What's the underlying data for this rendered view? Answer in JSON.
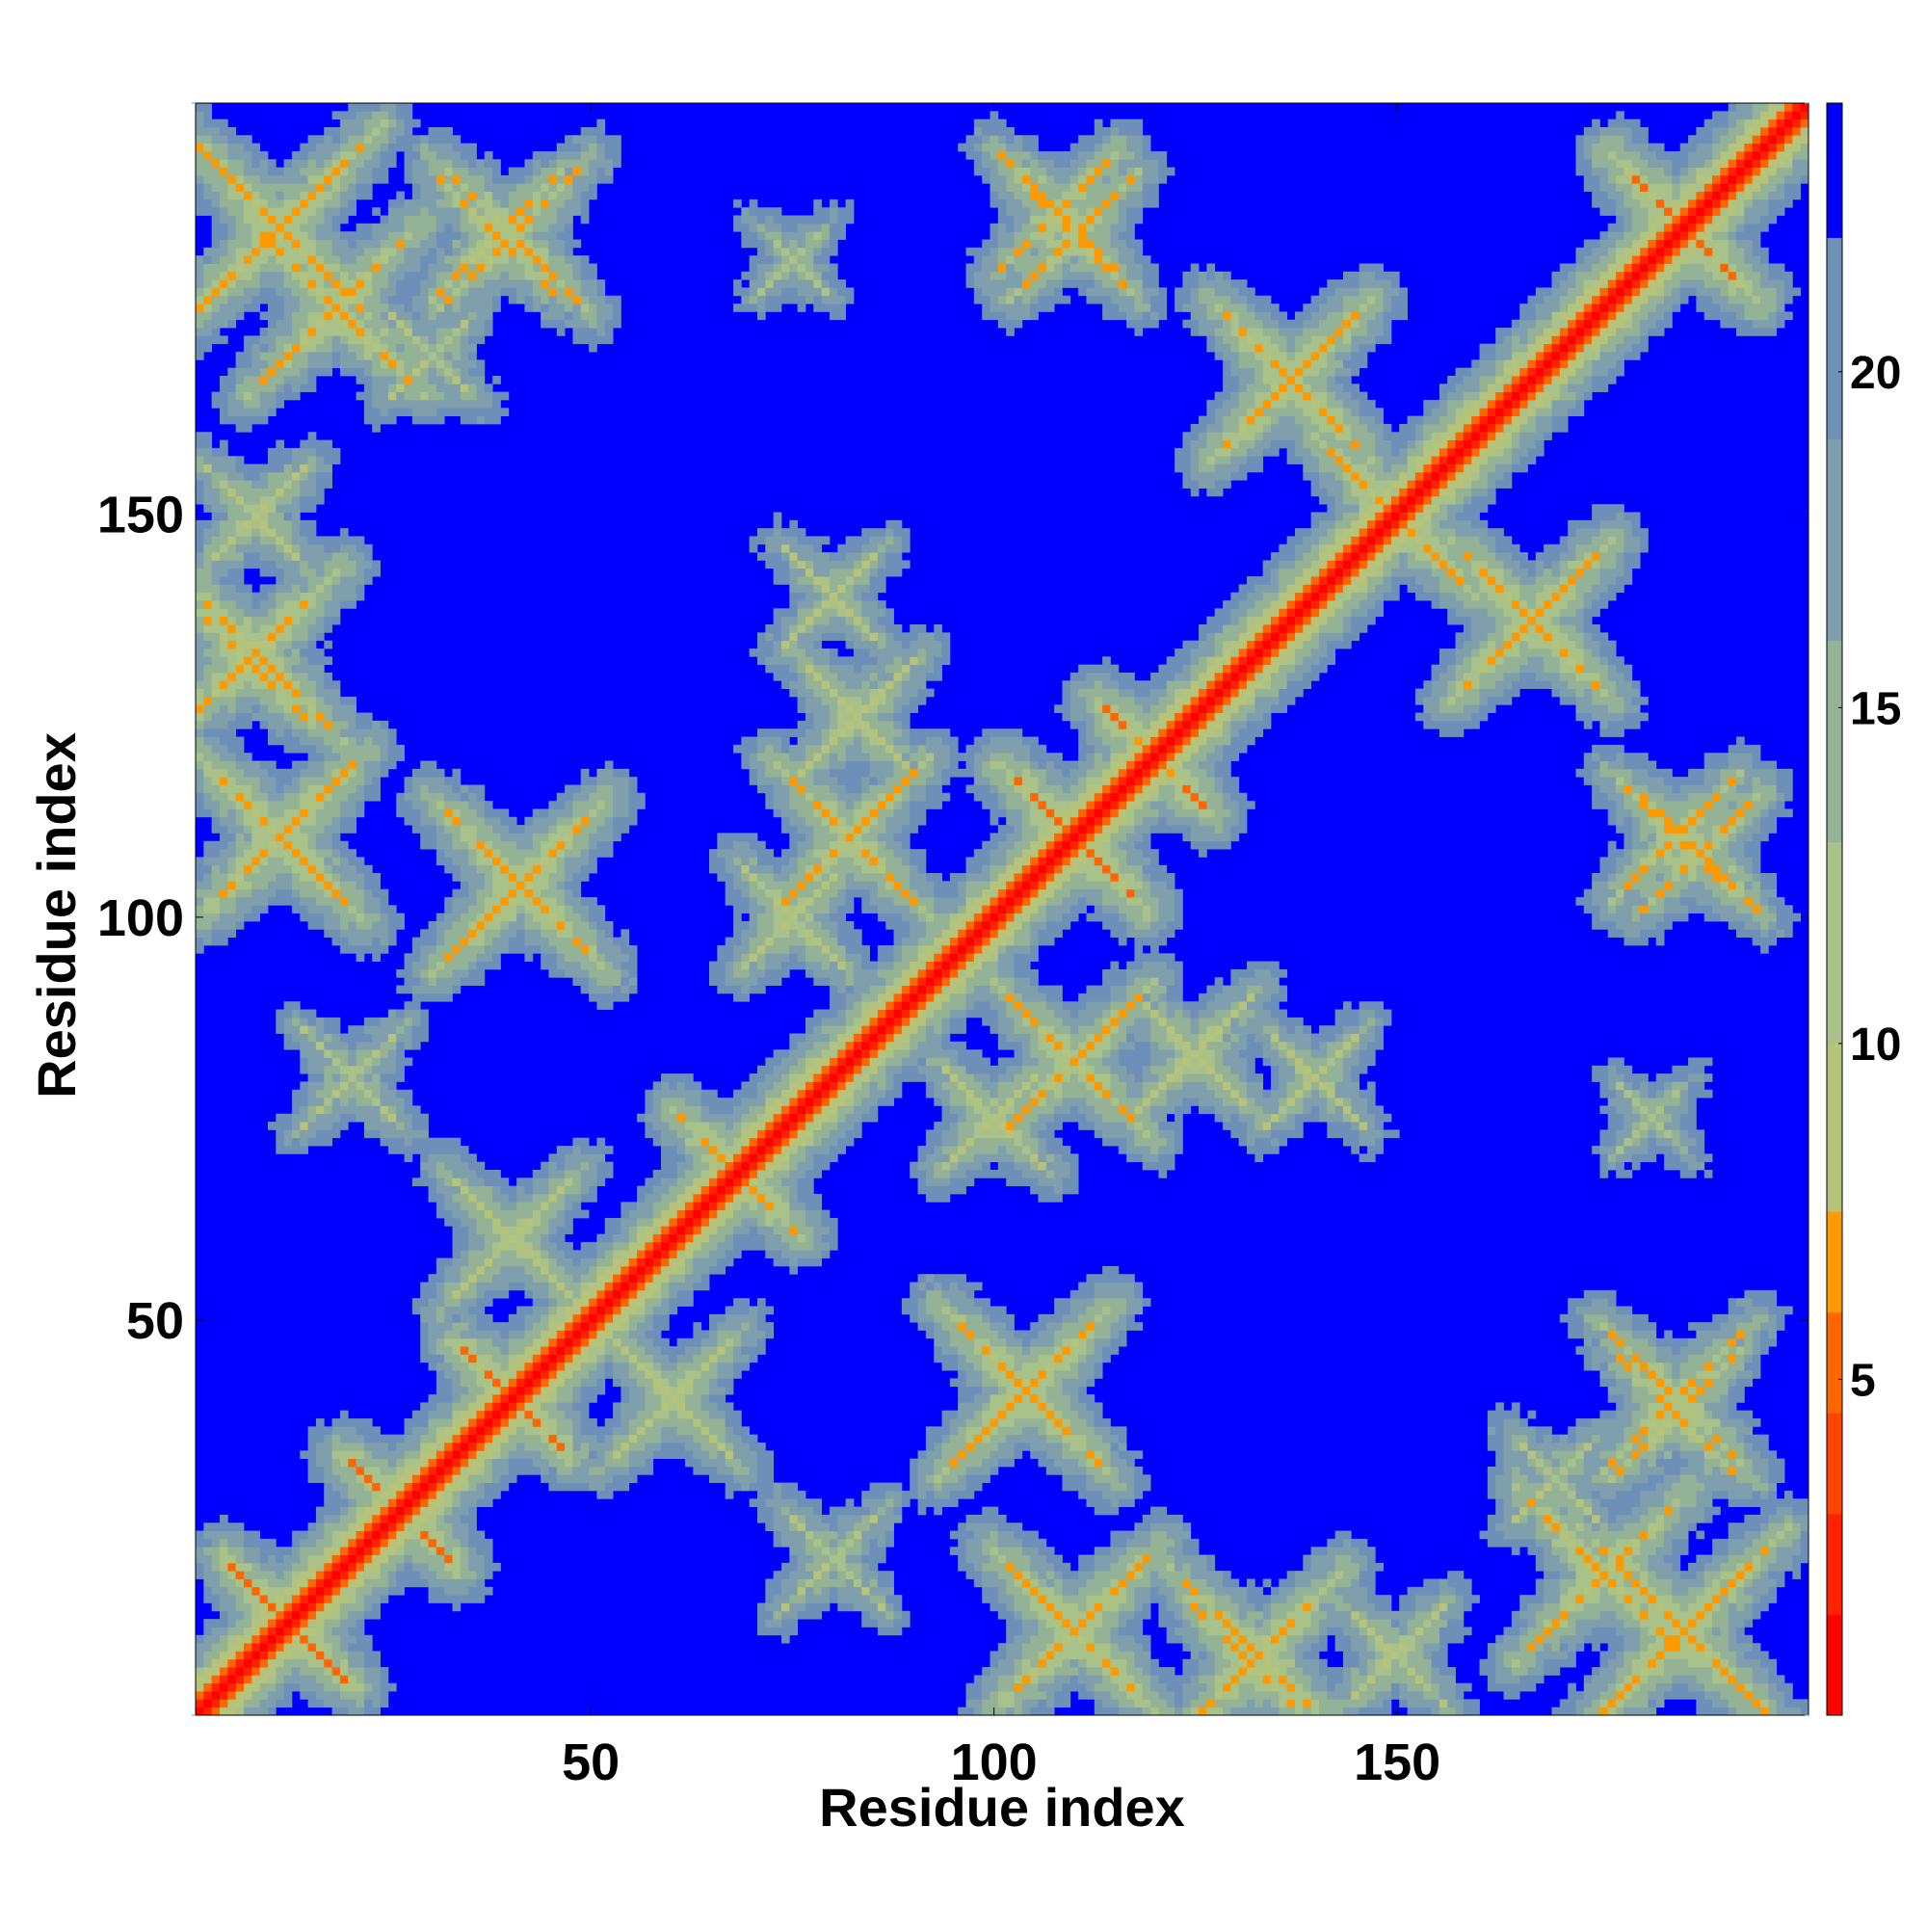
{
  "chart_data": {
    "type": "heatmap",
    "title": "",
    "xlabel": "Residue index",
    "ylabel": "Residue index",
    "n_residues": 201,
    "xlim": [
      1,
      201
    ],
    "ylim": [
      1,
      201
    ],
    "x_ticks": [
      50,
      100,
      150
    ],
    "y_ticks": [
      50,
      100,
      150
    ],
    "colorbar": {
      "ticks": [
        5,
        10,
        15,
        20
      ],
      "range": [
        0,
        24
      ],
      "levels": [
        {
          "min": 0,
          "max": 1.5,
          "color": "#ff0000"
        },
        {
          "min": 1.5,
          "max": 3,
          "color": "#ff2200"
        },
        {
          "min": 3,
          "max": 4.5,
          "color": "#ff4400"
        },
        {
          "min": 4.5,
          "max": 6,
          "color": "#ff6600"
        },
        {
          "min": 6,
          "max": 7.5,
          "color": "#ff9900"
        },
        {
          "min": 7.5,
          "max": 10,
          "color": "#b5c47a"
        },
        {
          "min": 10,
          "max": 13,
          "color": "#a8c28a"
        },
        {
          "min": 13,
          "max": 16,
          "color": "#94b296"
        },
        {
          "min": 16,
          "max": 19,
          "color": "#7f9fad"
        },
        {
          "min": 19,
          "max": 22,
          "color": "#6e8fb8"
        },
        {
          "min": 22,
          "max": 24,
          "color": "#0000ff"
        }
      ]
    },
    "description_of_values": "Pairwise residue distance map, symmetric about the diagonal",
    "diagonal_distance": 0,
    "background_distance": 24,
    "contact_features": [
      {
        "type": "antidiagonal",
        "center": [
          12,
          12
        ],
        "length": 16,
        "distance": 6
      },
      {
        "type": "antidiagonal",
        "center": [
          26,
          26
        ],
        "length": 14,
        "distance": 6
      },
      {
        "type": "antidiagonal",
        "center": [
          40,
          40
        ],
        "length": 14,
        "distance": 6
      },
      {
        "type": "antidiagonal",
        "center": [
          68,
          68
        ],
        "length": 16,
        "distance": 7
      },
      {
        "type": "antidiagonal",
        "center": [
          110,
          110
        ],
        "length": 18,
        "distance": 6
      },
      {
        "type": "antidiagonal",
        "center": [
          120,
          120
        ],
        "length": 14,
        "distance": 6
      },
      {
        "type": "antidiagonal",
        "center": [
          186,
          186
        ],
        "length": 18,
        "distance": 6
      },
      {
        "type": "antidiagonal",
        "center": [
          150,
          150
        ],
        "length": 12,
        "distance": 7
      },
      {
        "type": "cross",
        "center": [
          11,
          186
        ],
        "length": 26,
        "distance": 7
      },
      {
        "type": "cross",
        "center": [
          40,
          185
        ],
        "length": 20,
        "distance": 8
      },
      {
        "type": "cross",
        "center": [
          11,
          110
        ],
        "length": 22,
        "distance": 7
      },
      {
        "type": "cross",
        "center": [
          41,
          104
        ],
        "length": 22,
        "distance": 7
      },
      {
        "type": "cross",
        "center": [
          7,
          132
        ],
        "length": 16,
        "distance": 7
      },
      {
        "type": "cross",
        "center": [
          8,
          150
        ],
        "length": 14,
        "distance": 9
      },
      {
        "type": "cross",
        "center": [
          104,
          41
        ],
        "length": 20,
        "distance": 7
      },
      {
        "type": "cross",
        "center": [
          110,
          11
        ],
        "length": 20,
        "distance": 7
      },
      {
        "type": "cross",
        "center": [
          133,
          8
        ],
        "length": 22,
        "distance": 7
      },
      {
        "type": "cross",
        "center": [
          176,
          18
        ],
        "length": 22,
        "distance": 7
      },
      {
        "type": "cross",
        "center": [
          186,
          11
        ],
        "length": 24,
        "distance": 8
      },
      {
        "type": "cross",
        "center": [
          150,
          150
        ],
        "length": 20,
        "distance": 7
      },
      {
        "type": "cross",
        "center": [
          137,
          167
        ],
        "length": 20,
        "distance": 7
      },
      {
        "type": "cross",
        "center": [
          167,
          137
        ],
        "length": 20,
        "distance": 7
      },
      {
        "type": "cross",
        "center": [
          185,
          110
        ],
        "length": 16,
        "distance": 8
      },
      {
        "type": "cross",
        "center": [
          185,
          38
        ],
        "length": 16,
        "distance": 8
      },
      {
        "type": "cross",
        "center": [
          108,
          188
        ],
        "length": 16,
        "distance": 8
      },
      {
        "type": "cross",
        "center": [
          75,
          182
        ],
        "length": 10,
        "distance": 11
      },
      {
        "type": "cross",
        "center": [
          110,
          82
        ],
        "length": 20,
        "distance": 8
      },
      {
        "type": "cross",
        "center": [
          82,
          110
        ],
        "length": 20,
        "distance": 8
      },
      {
        "type": "cross",
        "center": [
          75,
          100
        ],
        "length": 14,
        "distance": 9
      },
      {
        "type": "cross",
        "center": [
          100,
          75
        ],
        "length": 14,
        "distance": 9
      },
      {
        "type": "cross",
        "center": [
          60,
          40
        ],
        "length": 18,
        "distance": 9
      },
      {
        "type": "cross",
        "center": [
          40,
          60
        ],
        "length": 18,
        "distance": 9
      },
      {
        "type": "cross",
        "center": [
          125,
          83
        ],
        "length": 16,
        "distance": 9
      },
      {
        "type": "cross",
        "center": [
          83,
          125
        ],
        "length": 16,
        "distance": 9
      },
      {
        "type": "cross",
        "center": [
          140,
          80
        ],
        "length": 14,
        "distance": 10
      },
      {
        "type": "cross",
        "center": [
          20,
          80
        ],
        "length": 14,
        "distance": 10
      },
      {
        "type": "cross",
        "center": [
          30,
          170
        ],
        "length": 12,
        "distance": 10
      }
    ]
  }
}
